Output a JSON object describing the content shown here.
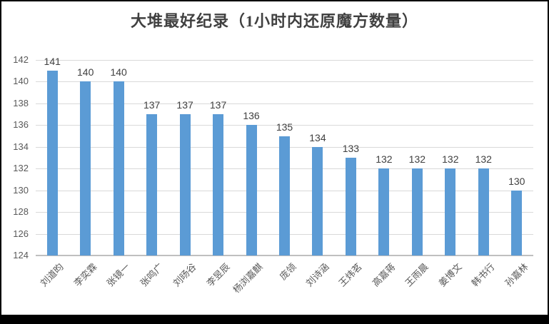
{
  "chart_data": {
    "type": "bar",
    "title": "大堆最好纪录（1小时内还原魔方数量）",
    "categories": [
      "刘道昀",
      "李奕霖",
      "张镜一",
      "张鸣广",
      "刘旸谷",
      "李昱辰",
      "杨浏嘉麒",
      "庞领",
      "刘诗涵",
      "王炜茗",
      "高嘉蒋",
      "王雨晨",
      "姜博文",
      "韩书行",
      "孙嘉林"
    ],
    "values": [
      141,
      140,
      140,
      137,
      137,
      137,
      136,
      135,
      134,
      133,
      132,
      132,
      132,
      132,
      130
    ],
    "data_labels": [
      141,
      140,
      140,
      137,
      137,
      137,
      136,
      135,
      134,
      133,
      132,
      132,
      132,
      132,
      130
    ],
    "xlabel": "",
    "ylabel": "",
    "ylim": [
      124,
      142
    ],
    "yticks": [
      124,
      126,
      128,
      130,
      132,
      134,
      136,
      138,
      140,
      142
    ],
    "grid": true,
    "legend": "none",
    "colors": {
      "bar": "#5b9bd5",
      "gridline": "#d9d9d9",
      "axis_line": "#bfbfbf",
      "title_text": "#404040",
      "tick_text": "#595959",
      "data_label_text": "#404040",
      "frame_border": "#000000",
      "background": "#ffffff"
    }
  }
}
